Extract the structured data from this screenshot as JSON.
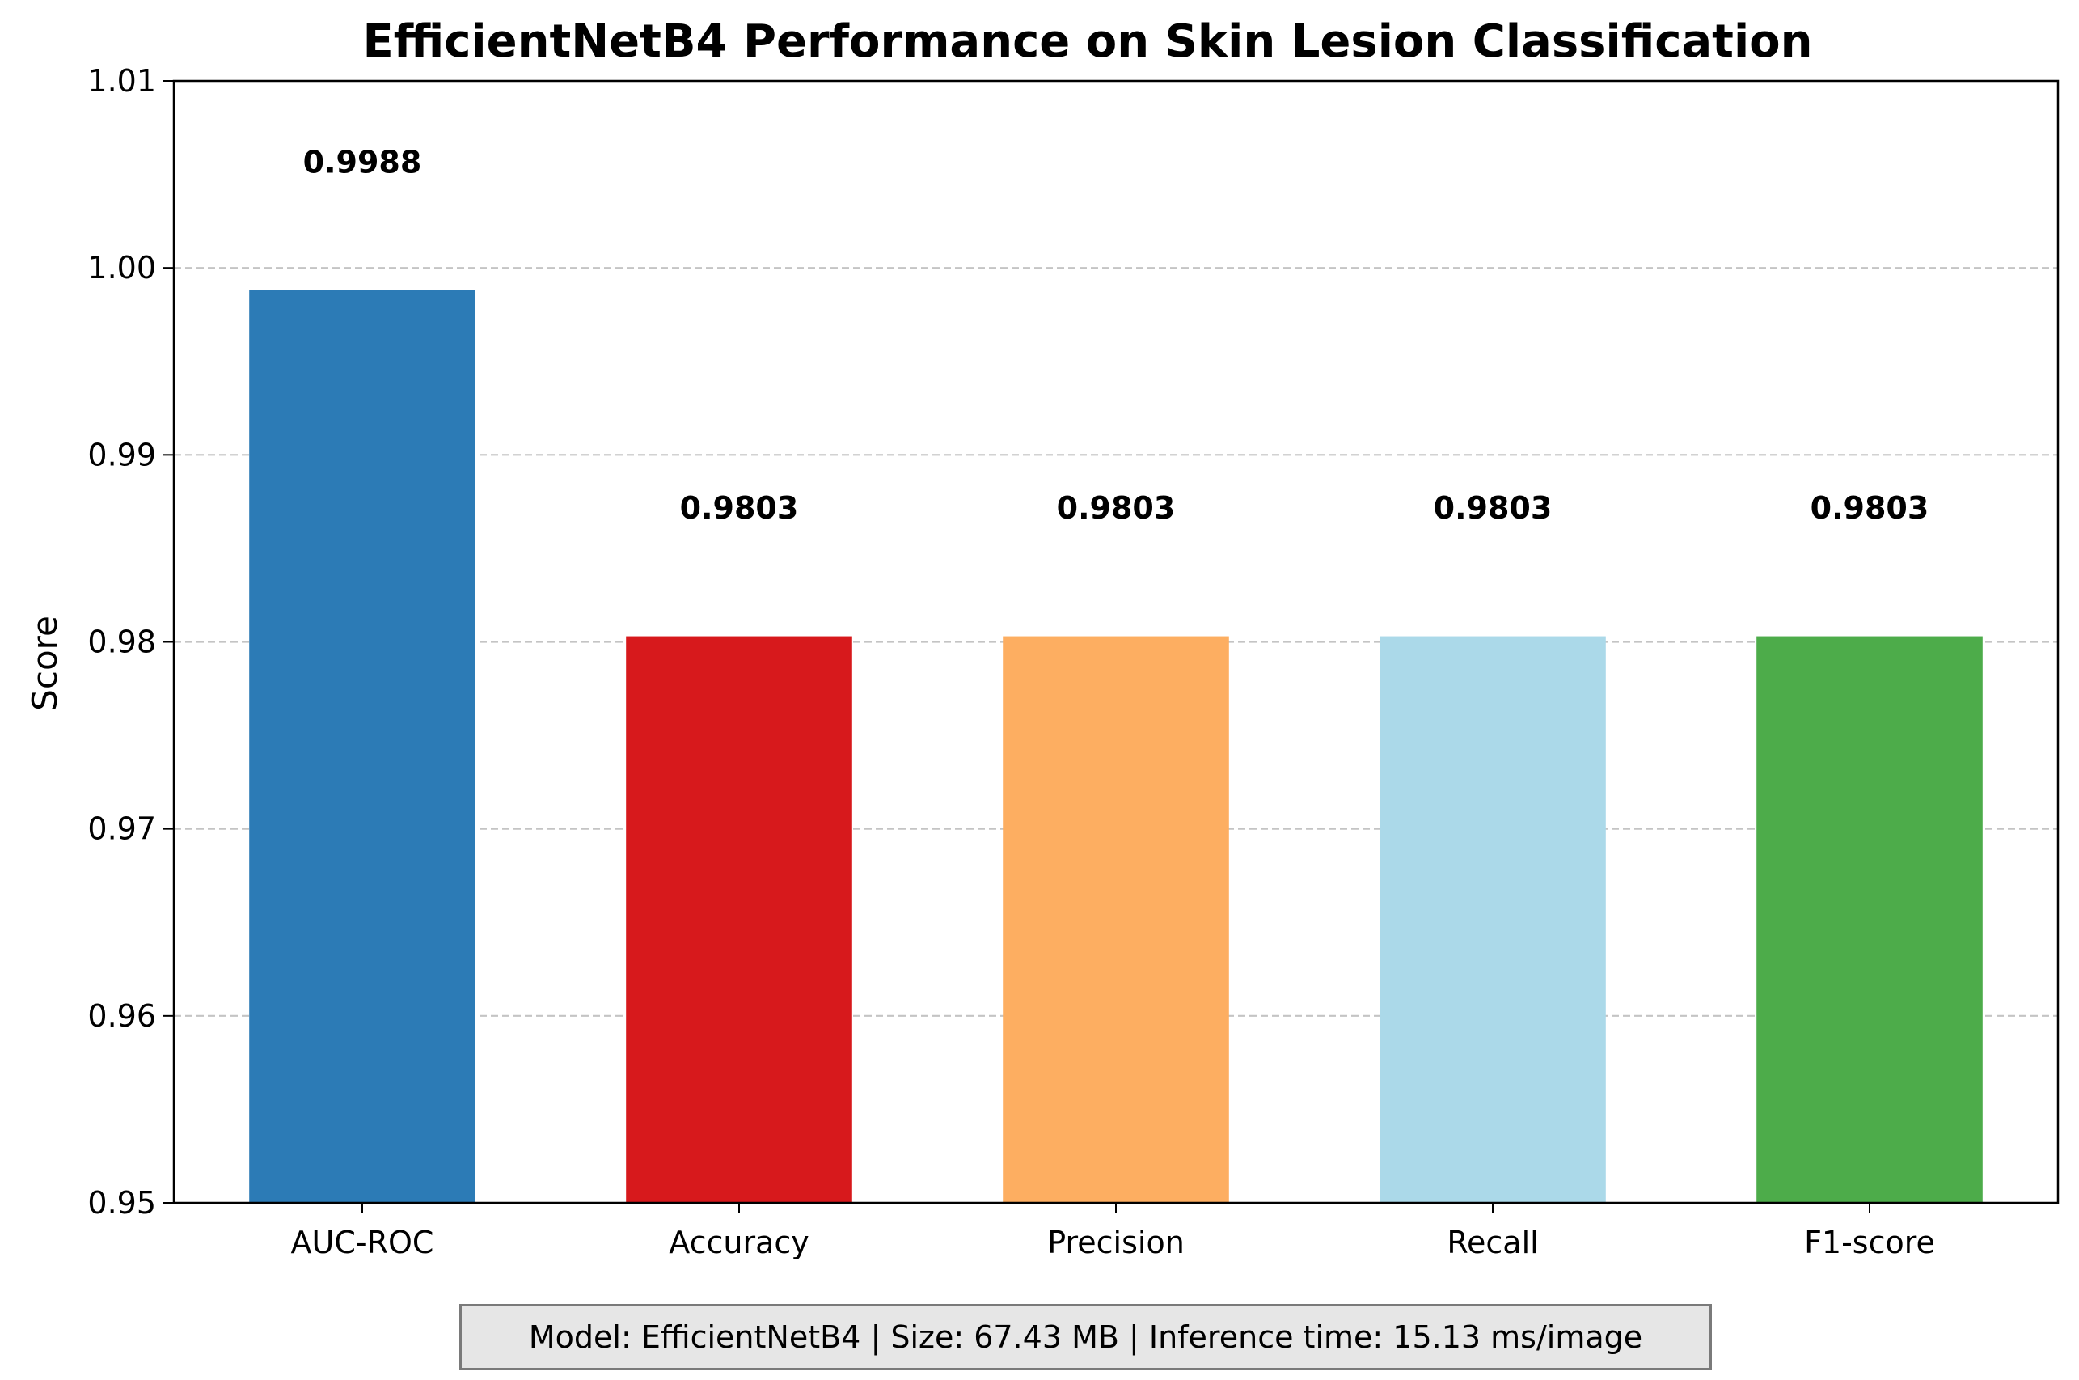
{
  "chart_data": {
    "type": "bar",
    "title": "EfficientNetB4 Performance on Skin Lesion Classification",
    "xlabel": "",
    "ylabel": "Score",
    "categories": [
      "AUC-ROC",
      "Accuracy",
      "Precision",
      "Recall",
      "F1-score"
    ],
    "values": [
      0.9988,
      0.9803,
      0.9803,
      0.9803,
      0.9803
    ],
    "value_labels": [
      "0.9988",
      "0.9803",
      "0.9803",
      "0.9803",
      "0.9803"
    ],
    "colors": [
      "#2c7bb6",
      "#d7191c",
      "#fdae61",
      "#abd9e9",
      "#4dac4a"
    ],
    "ylim": [
      0.95,
      1.01
    ],
    "yticks": [
      0.95,
      0.96,
      0.97,
      0.98,
      0.99,
      1.0,
      1.01
    ],
    "ytick_labels": [
      "0.95",
      "0.96",
      "0.97",
      "0.98",
      "0.99",
      "1.00",
      "1.01"
    ],
    "grid": "y-dashed"
  },
  "footer": {
    "text": "Model: EfficientNetB4 | Size: 67.43 MB | Inference time: 15.13 ms/image"
  }
}
